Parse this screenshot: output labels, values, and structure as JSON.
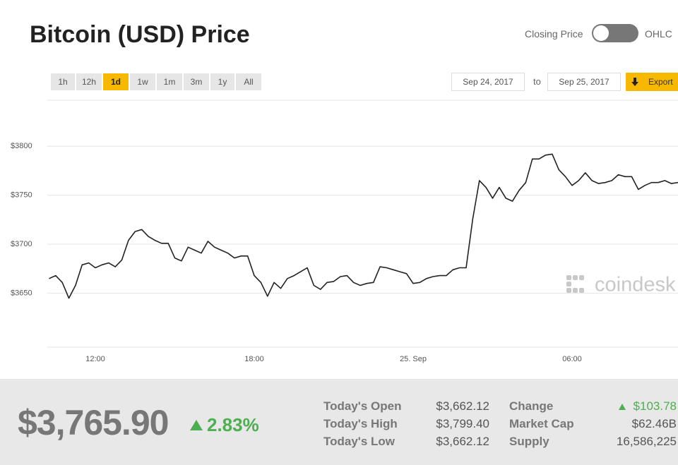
{
  "header": {
    "title": "Bitcoin (USD) Price",
    "toggle_left": "Closing Price",
    "toggle_right": "OHLC"
  },
  "controls": {
    "ranges": [
      "1h",
      "12h",
      "1d",
      "1w",
      "1m",
      "3m",
      "1y",
      "All"
    ],
    "active": "1d",
    "date_from": "Sep 24, 2017",
    "date_sep": "to",
    "date_to": "Sep 25, 2017",
    "export": "Export"
  },
  "watermark": "coindesk",
  "chart_data": {
    "type": "line",
    "color": "#222222",
    "grid": true,
    "categories": [
      null,
      null,
      null,
      null,
      null,
      null,
      null,
      "12:00",
      null,
      null,
      null,
      null,
      null,
      null,
      null,
      null,
      null,
      null,
      null,
      null,
      null,
      null,
      null,
      null,
      null,
      null,
      null,
      null,
      null,
      null,
      null,
      "18:00",
      null,
      null,
      null,
      null,
      null,
      null,
      null,
      null,
      null,
      null,
      null,
      null,
      null,
      null,
      null,
      null,
      null,
      null,
      null,
      null,
      null,
      null,
      null,
      "25. Sep",
      null,
      null,
      null,
      null,
      null,
      null,
      null,
      null,
      null,
      null,
      null,
      null,
      null,
      null,
      null,
      null,
      null,
      null,
      null,
      null,
      null,
      null,
      null,
      "06:00",
      null,
      null,
      null,
      null,
      null,
      null,
      null,
      null,
      null,
      null,
      null,
      null,
      null,
      null,
      null,
      null
    ],
    "values": [
      3665,
      3668,
      3661,
      3645,
      3658,
      3679,
      3681,
      3676,
      3679,
      3681,
      3677,
      3684,
      3704,
      3713,
      3715,
      3708,
      3704,
      3701,
      3701,
      3686,
      3683,
      3697,
      3694,
      3691,
      3703,
      3697,
      3694,
      3691,
      3686,
      3688,
      3688,
      3668,
      3661,
      3647,
      3661,
      3655,
      3665,
      3668,
      3672,
      3676,
      3658,
      3654,
      3661,
      3662,
      3667,
      3668,
      3661,
      3658,
      3660,
      3661,
      3677,
      3676,
      3674,
      3672,
      3670,
      3660,
      3661,
      3665,
      3667,
      3668,
      3668,
      3674,
      3676,
      3676,
      3726,
      3765,
      3758,
      3747,
      3758,
      3747,
      3744,
      3755,
      3763,
      3787,
      3787,
      3791,
      3792,
      3776,
      3769,
      3760,
      3765,
      3773,
      3765,
      3762,
      3763,
      3765,
      3771,
      3769,
      3769,
      3756,
      3760,
      3763,
      3763,
      3765,
      3762,
      3763
    ],
    "ylim": [
      3595,
      3847
    ],
    "yticks": [
      {
        "value": 3650,
        "label": "$3650"
      },
      {
        "value": 3700,
        "label": "$3700"
      },
      {
        "value": 3750,
        "label": "$3750"
      },
      {
        "value": 3800,
        "label": "$3800"
      }
    ]
  },
  "summary": {
    "price": "$3,765.90",
    "change_pct": "2.83%",
    "stats": [
      [
        "Today's Open",
        "$3,662.12",
        "Change",
        "$103.78"
      ],
      [
        "Today's High",
        "$3,799.40",
        "Market Cap",
        "$62.46B"
      ],
      [
        "Today's Low",
        "$3,662.12",
        "Supply",
        "16,586,225"
      ]
    ]
  }
}
